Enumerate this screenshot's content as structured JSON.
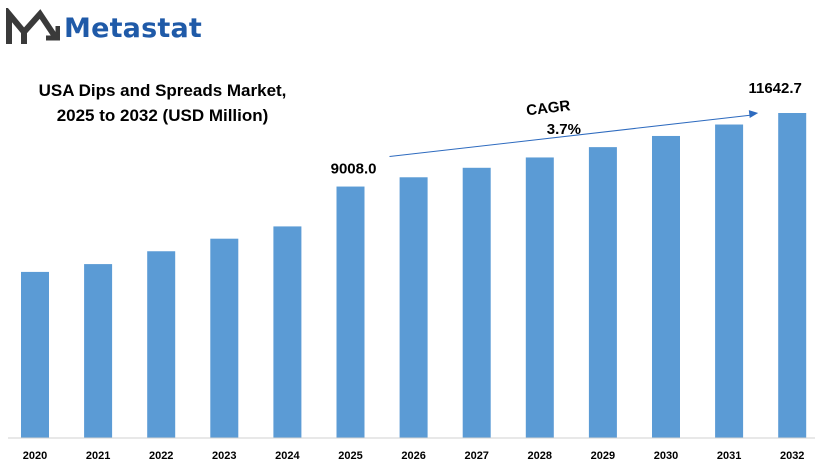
{
  "logo": {
    "text": "Metastat"
  },
  "colors": {
    "bar": "#5b9bd5",
    "axis": "#d0d0d0",
    "arrow": "#2e6bbf",
    "logo": "#1f5aa8"
  },
  "chart_data": {
    "type": "bar",
    "title_lines": [
      "USA Dips and Spreads Market,",
      "2025 to 2032 (USD Million)"
    ],
    "xlabel": "",
    "ylabel": "",
    "categories": [
      "2020",
      "2021",
      "2022",
      "2023",
      "2024",
      "2025",
      "2026",
      "2027",
      "2028",
      "2029",
      "2030",
      "2031",
      "2032"
    ],
    "values": [
      5950,
      6230,
      6690,
      7140,
      7580,
      9008.0,
      9340,
      9680,
      10050,
      10420,
      10820,
      11230,
      11642.7
    ],
    "ylim": [
      0,
      11642.7
    ],
    "grid": false,
    "annotations": {
      "start_value": "9008.0",
      "end_value": "11642.7",
      "cagr_label": "CAGR",
      "cagr_value": "3.7%"
    }
  }
}
